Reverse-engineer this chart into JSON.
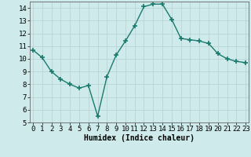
{
  "x": [
    0,
    1,
    2,
    3,
    4,
    5,
    6,
    7,
    8,
    9,
    10,
    11,
    12,
    13,
    14,
    15,
    16,
    17,
    18,
    19,
    20,
    21,
    22,
    23
  ],
  "y": [
    10.7,
    10.1,
    9.0,
    8.4,
    8.0,
    7.7,
    7.9,
    5.5,
    8.6,
    10.3,
    11.4,
    12.6,
    14.1,
    14.3,
    14.3,
    13.1,
    11.6,
    11.5,
    11.4,
    11.2,
    10.4,
    10.0,
    9.8,
    9.7
  ],
  "xlabel": "Humidex (Indice chaleur)",
  "ylim": [
    5,
    14.5
  ],
  "xlim": [
    -0.3,
    23.3
  ],
  "yticks": [
    5,
    6,
    7,
    8,
    9,
    10,
    11,
    12,
    13,
    14
  ],
  "xticks": [
    0,
    1,
    2,
    3,
    4,
    5,
    6,
    7,
    8,
    9,
    10,
    11,
    12,
    13,
    14,
    15,
    16,
    17,
    18,
    19,
    20,
    21,
    22,
    23
  ],
  "line_color": "#1a7a6e",
  "marker": "+",
  "marker_size": 4,
  "marker_lw": 1.2,
  "line_width": 1.0,
  "bg_color": "#ceeaea",
  "grid_color": "#b8d4d4",
  "xlabel_fontsize": 7,
  "tick_fontsize": 6.5,
  "ylabel_fontsize": 6.5
}
